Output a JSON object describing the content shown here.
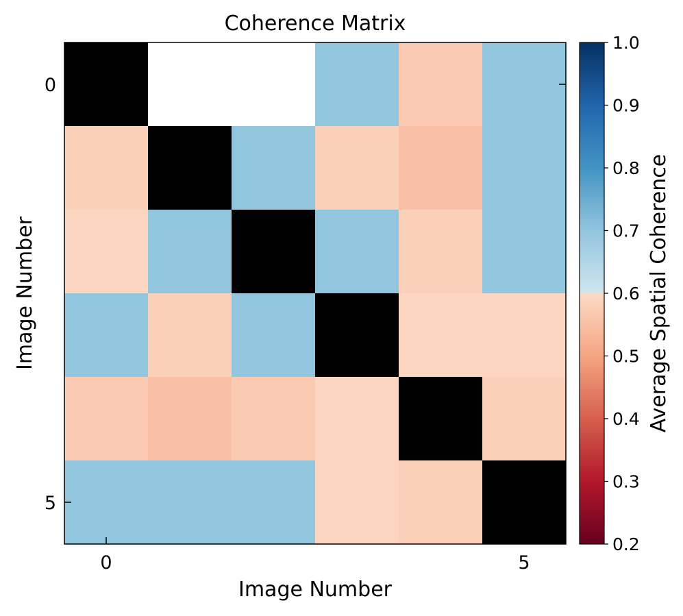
{
  "chart_data": {
    "type": "heatmap",
    "title": "Coherence Matrix",
    "xlabel": "Image Number",
    "ylabel": "Image Number",
    "x_ticks": [
      0,
      5
    ],
    "y_ticks": [
      0,
      5
    ],
    "x_tick_labels": [
      "0",
      "5"
    ],
    "y_tick_labels": [
      "0",
      "5"
    ],
    "rows": 6,
    "cols": 6,
    "matrix": [
      [
        null,
        0.6,
        0.6,
        0.7,
        0.57,
        0.7
      ],
      [
        0.58,
        null,
        0.7,
        0.58,
        0.55,
        0.7
      ],
      [
        0.59,
        0.7,
        null,
        0.7,
        0.58,
        0.7
      ],
      [
        0.7,
        0.58,
        0.7,
        null,
        0.59,
        0.59
      ],
      [
        0.57,
        0.55,
        0.57,
        0.59,
        null,
        0.58
      ],
      [
        0.7,
        0.7,
        0.7,
        0.59,
        0.58,
        null
      ]
    ],
    "colorbar": {
      "label": "Average Spatial Coherence",
      "vmin": 0.2,
      "vmax": 1.0,
      "ticks": [
        0.2,
        0.3,
        0.4,
        0.5,
        0.6,
        0.7,
        0.8,
        0.9,
        1.0
      ],
      "tick_labels": [
        "0.2",
        "0.3",
        "0.4",
        "0.5",
        "0.6",
        "0.7",
        "0.8",
        "0.9",
        "1.0"
      ],
      "colormap": "RdBu"
    },
    "diagonal_color": "#000000",
    "grid": false
  }
}
